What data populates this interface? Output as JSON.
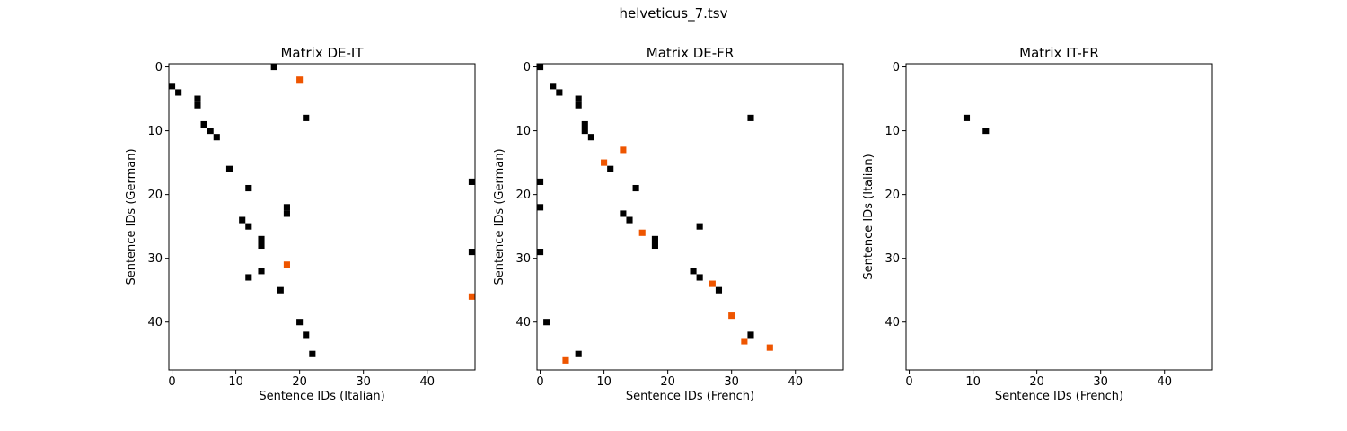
{
  "figure": {
    "title": "helveticus_7.tsv"
  },
  "colors": {
    "match": "#000000",
    "highlight": "#ee5500",
    "frame": "#000000"
  },
  "chart_data": [
    {
      "type": "heatmap",
      "title": "Matrix DE-IT",
      "xlabel": "Sentence IDs (Italian)",
      "ylabel": "Sentence IDs (German)",
      "xlim": [
        -0.5,
        47.5
      ],
      "ylim": [
        47.5,
        -0.5
      ],
      "xticks": [
        0,
        10,
        20,
        30,
        40
      ],
      "yticks": [
        0,
        10,
        20,
        30,
        40
      ],
      "grid": false,
      "cells": [
        {
          "x": 16,
          "y": 0,
          "c": "match"
        },
        {
          "x": 20,
          "y": 2,
          "c": "highlight"
        },
        {
          "x": 0,
          "y": 3,
          "c": "match"
        },
        {
          "x": 1,
          "y": 4,
          "c": "match"
        },
        {
          "x": 4,
          "y": 5,
          "c": "match"
        },
        {
          "x": 4,
          "y": 6,
          "c": "match"
        },
        {
          "x": 21,
          "y": 8,
          "c": "match"
        },
        {
          "x": 5,
          "y": 9,
          "c": "match"
        },
        {
          "x": 6,
          "y": 10,
          "c": "match"
        },
        {
          "x": 7,
          "y": 11,
          "c": "match"
        },
        {
          "x": 9,
          "y": 16,
          "c": "match"
        },
        {
          "x": 47,
          "y": 18,
          "c": "match"
        },
        {
          "x": 12,
          "y": 19,
          "c": "match"
        },
        {
          "x": 18,
          "y": 22,
          "c": "match"
        },
        {
          "x": 18,
          "y": 23,
          "c": "match"
        },
        {
          "x": 11,
          "y": 24,
          "c": "match"
        },
        {
          "x": 12,
          "y": 25,
          "c": "match"
        },
        {
          "x": 14,
          "y": 27,
          "c": "match"
        },
        {
          "x": 14,
          "y": 28,
          "c": "match"
        },
        {
          "x": 47,
          "y": 29,
          "c": "match"
        },
        {
          "x": 18,
          "y": 31,
          "c": "highlight"
        },
        {
          "x": 14,
          "y": 32,
          "c": "match"
        },
        {
          "x": 12,
          "y": 33,
          "c": "match"
        },
        {
          "x": 17,
          "y": 35,
          "c": "match"
        },
        {
          "x": 47,
          "y": 36,
          "c": "highlight"
        },
        {
          "x": 20,
          "y": 40,
          "c": "match"
        },
        {
          "x": 21,
          "y": 42,
          "c": "match"
        },
        {
          "x": 22,
          "y": 45,
          "c": "match"
        }
      ]
    },
    {
      "type": "heatmap",
      "title": "Matrix DE-FR",
      "xlabel": "Sentence IDs (French)",
      "ylabel": "Sentence IDs (German)",
      "xlim": [
        -0.5,
        47.5
      ],
      "ylim": [
        47.5,
        -0.5
      ],
      "xticks": [
        0,
        10,
        20,
        30,
        40
      ],
      "yticks": [
        0,
        10,
        20,
        30,
        40
      ],
      "grid": false,
      "cells": [
        {
          "x": 0,
          "y": 0,
          "c": "match"
        },
        {
          "x": 2,
          "y": 3,
          "c": "match"
        },
        {
          "x": 3,
          "y": 4,
          "c": "match"
        },
        {
          "x": 6,
          "y": 5,
          "c": "match"
        },
        {
          "x": 6,
          "y": 6,
          "c": "match"
        },
        {
          "x": 33,
          "y": 8,
          "c": "match"
        },
        {
          "x": 7,
          "y": 9,
          "c": "match"
        },
        {
          "x": 7,
          "y": 10,
          "c": "match"
        },
        {
          "x": 8,
          "y": 11,
          "c": "match"
        },
        {
          "x": 13,
          "y": 13,
          "c": "highlight"
        },
        {
          "x": 10,
          "y": 15,
          "c": "highlight"
        },
        {
          "x": 11,
          "y": 16,
          "c": "match"
        },
        {
          "x": 0,
          "y": 18,
          "c": "match"
        },
        {
          "x": 15,
          "y": 19,
          "c": "match"
        },
        {
          "x": 0,
          "y": 22,
          "c": "match"
        },
        {
          "x": 13,
          "y": 23,
          "c": "match"
        },
        {
          "x": 14,
          "y": 24,
          "c": "match"
        },
        {
          "x": 25,
          "y": 25,
          "c": "match"
        },
        {
          "x": 16,
          "y": 26,
          "c": "highlight"
        },
        {
          "x": 18,
          "y": 27,
          "c": "match"
        },
        {
          "x": 18,
          "y": 28,
          "c": "match"
        },
        {
          "x": 0,
          "y": 29,
          "c": "match"
        },
        {
          "x": 24,
          "y": 32,
          "c": "match"
        },
        {
          "x": 25,
          "y": 33,
          "c": "match"
        },
        {
          "x": 27,
          "y": 34,
          "c": "highlight"
        },
        {
          "x": 28,
          "y": 35,
          "c": "match"
        },
        {
          "x": 30,
          "y": 39,
          "c": "highlight"
        },
        {
          "x": 1,
          "y": 40,
          "c": "match"
        },
        {
          "x": 33,
          "y": 42,
          "c": "match"
        },
        {
          "x": 32,
          "y": 43,
          "c": "highlight"
        },
        {
          "x": 36,
          "y": 44,
          "c": "highlight"
        },
        {
          "x": 6,
          "y": 45,
          "c": "match"
        },
        {
          "x": 4,
          "y": 46,
          "c": "highlight"
        }
      ]
    },
    {
      "type": "heatmap",
      "title": "Matrix IT-FR",
      "xlabel": "Sentence IDs (French)",
      "ylabel": "Sentence IDs (Italian)",
      "xlim": [
        -0.5,
        47.5
      ],
      "ylim": [
        47.5,
        -0.5
      ],
      "xticks": [
        0,
        10,
        20,
        30,
        40
      ],
      "yticks": [
        0,
        10,
        20,
        30,
        40
      ],
      "grid": false,
      "cells": [
        {
          "x": 9,
          "y": 8,
          "c": "match"
        },
        {
          "x": 12,
          "y": 10,
          "c": "match"
        }
      ]
    }
  ]
}
